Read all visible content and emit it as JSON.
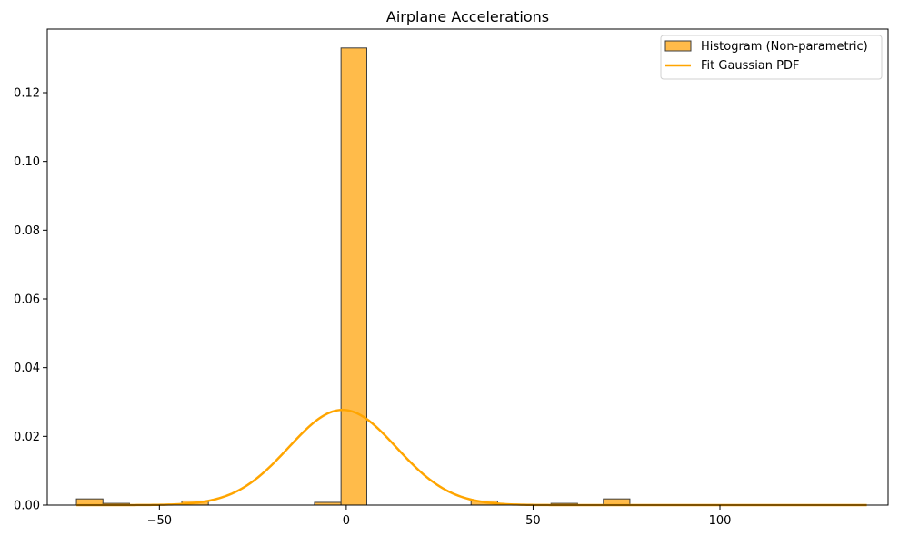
{
  "chart_data": {
    "type": "bar",
    "title": "Airplane Accelerations",
    "xlabel": "",
    "ylabel": "",
    "xlim": [
      -80,
      145
    ],
    "ylim": [
      0,
      0.1385
    ],
    "xticks": [
      -50,
      0,
      50,
      100
    ],
    "xtick_labels": [
      "−50",
      "0",
      "50",
      "100"
    ],
    "yticks": [
      0,
      0.02,
      0.04,
      0.06,
      0.08,
      0.1,
      0.12
    ],
    "ytick_labels": [
      "0.00",
      "0.02",
      "0.04",
      "0.06",
      "0.08",
      "0.10",
      "0.12"
    ],
    "grid": false,
    "legend_position": "top-right",
    "histogram": {
      "name": "Histogram (Non-parametric)",
      "bin_width": 7.1,
      "bins": [
        {
          "x0": -72.2,
          "x1": -65.1,
          "value": 0.0018
        },
        {
          "x0": -65.1,
          "x1": -58.0,
          "value": 0.0005
        },
        {
          "x0": -44.0,
          "x1": -36.9,
          "value": 0.0012
        },
        {
          "x0": -8.5,
          "x1": -1.4,
          "value": 0.0008
        },
        {
          "x0": -1.4,
          "x1": 5.5,
          "value": 0.133
        },
        {
          "x0": 33.4,
          "x1": 40.5,
          "value": 0.0012
        },
        {
          "x0": 54.8,
          "x1": 61.9,
          "value": 0.0005
        },
        {
          "x0": 68.8,
          "x1": 75.9,
          "value": 0.0018
        }
      ],
      "fill_color": "#FFBB4A",
      "edge_color": "#3d3d3d"
    },
    "series": [
      {
        "name": "Fit Gaussian PDF",
        "type": "line",
        "mean": -1.0,
        "std": 14.4,
        "x_range": [
          -72.2,
          139.3
        ],
        "color": "#FFA500"
      }
    ]
  }
}
